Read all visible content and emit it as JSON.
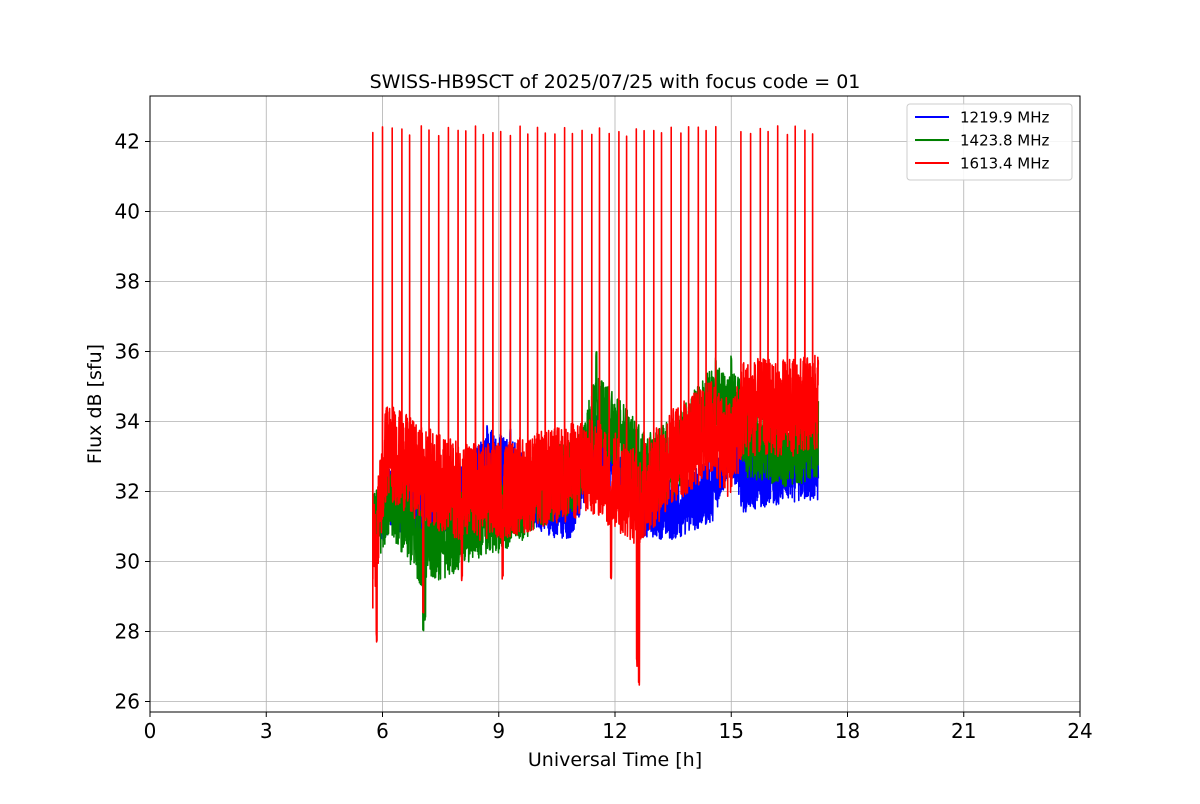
{
  "chart_data": {
    "type": "line",
    "title": "SWISS-HB9SCT of 2025/07/25 with focus code = 01",
    "xlabel": "Universal Time [h]",
    "ylabel": "Flux dB [sfu]",
    "xlim": [
      0,
      24
    ],
    "ylim": [
      25.7,
      43.3
    ],
    "xticks": [
      0,
      3,
      6,
      9,
      12,
      15,
      18,
      21,
      24
    ],
    "yticks": [
      26,
      28,
      30,
      32,
      34,
      36,
      38,
      40,
      42
    ],
    "grid": true,
    "legend_position": "top-right",
    "series": [
      {
        "name": "1219.9 MHz",
        "color": "#0000ff",
        "baseline": [
          [
            5.75,
            31.0
          ],
          [
            6.2,
            31.8
          ],
          [
            7.0,
            31.6
          ],
          [
            8.0,
            31.8
          ],
          [
            8.8,
            32.9
          ],
          [
            9.2,
            32.8
          ],
          [
            10.0,
            31.8
          ],
          [
            10.8,
            31.4
          ],
          [
            11.5,
            33.4
          ],
          [
            12.0,
            32.6
          ],
          [
            12.7,
            31.6
          ],
          [
            13.5,
            31.5
          ],
          [
            14.5,
            32.0
          ],
          [
            15.0,
            33.5
          ],
          [
            15.3,
            32.3
          ],
          [
            16.5,
            32.6
          ],
          [
            17.25,
            32.6
          ]
        ],
        "spread": 0.9
      },
      {
        "name": "1423.8 MHz",
        "color": "#008000",
        "baseline": [
          [
            5.75,
            30.8
          ],
          [
            6.2,
            31.9
          ],
          [
            7.0,
            30.4
          ],
          [
            7.6,
            30.6
          ],
          [
            8.5,
            31.2
          ],
          [
            9.2,
            31.4
          ],
          [
            10.0,
            32.0
          ],
          [
            11.0,
            32.5
          ],
          [
            11.5,
            34.2
          ],
          [
            12.0,
            33.8
          ],
          [
            12.8,
            32.5
          ],
          [
            13.5,
            33.0
          ],
          [
            14.5,
            34.5
          ],
          [
            15.2,
            34.3
          ],
          [
            15.4,
            33.5
          ],
          [
            16.5,
            33.2
          ],
          [
            17.25,
            33.5
          ]
        ],
        "spread": 1.1
      },
      {
        "name": "1613.4 MHz",
        "color": "#ff0000",
        "baseline": [
          [
            5.75,
            30.0
          ],
          [
            6.1,
            33.2
          ],
          [
            7.0,
            32.5
          ],
          [
            8.0,
            32.0
          ],
          [
            9.0,
            32.0
          ],
          [
            10.0,
            32.3
          ],
          [
            11.0,
            32.6
          ],
          [
            11.5,
            32.7
          ],
          [
            12.0,
            32.3
          ],
          [
            12.6,
            31.8
          ],
          [
            13.5,
            33.0
          ],
          [
            14.5,
            33.8
          ],
          [
            15.0,
            33.1
          ],
          [
            15.3,
            34.4
          ],
          [
            16.5,
            34.4
          ],
          [
            17.25,
            34.5
          ]
        ],
        "spread": 1.4,
        "spike_times": [
          5.75,
          6.0,
          6.25,
          6.5,
          6.7,
          7.0,
          7.2,
          7.45,
          7.7,
          7.95,
          8.15,
          8.4,
          8.6,
          8.85,
          9.05,
          9.3,
          9.55,
          9.75,
          10.0,
          10.2,
          10.45,
          10.7,
          10.9,
          11.15,
          11.4,
          11.6,
          11.85,
          12.1,
          12.3,
          12.55,
          12.75,
          13.0,
          13.2,
          13.45,
          13.7,
          13.9,
          14.15,
          14.35,
          14.6,
          15.25,
          15.5,
          15.75,
          15.95,
          16.2,
          16.45,
          16.65,
          16.9,
          17.1
        ],
        "spike_peak": 42.3,
        "dips": [
          [
            5.85,
            27.7
          ],
          [
            7.05,
            28.5
          ],
          [
            8.05,
            29.4
          ],
          [
            9.1,
            29.5
          ],
          [
            11.9,
            29.5
          ],
          [
            12.57,
            27.0
          ],
          [
            12.62,
            26.4
          ]
        ]
      }
    ],
    "green_extra_dips": [
      [
        7.05,
        27.9
      ],
      [
        7.1,
        28.3
      ]
    ],
    "green_extra_peaks": [
      [
        11.52,
        36.0
      ],
      [
        14.6,
        35.9
      ],
      [
        15.0,
        35.9
      ]
    ],
    "blue_extra_peaks": [
      [
        8.7,
        33.9
      ],
      [
        9.3,
        33.8
      ],
      [
        11.4,
        33.7
      ]
    ]
  }
}
